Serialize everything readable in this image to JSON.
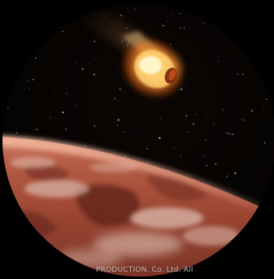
{
  "image": {
    "subject": "comet-over-red-planet",
    "colors": {
      "space": "#050302",
      "planet_surface": "#b8573f",
      "planet_dark": "#6b2a1e",
      "cloud": "#e8d2c6",
      "comet_core": "#fff3b0",
      "comet_glow": "#ff8a1e",
      "comet_tail": "#f2c06a",
      "frame": "#000000"
    }
  },
  "credit": {
    "text": "PRODUCTION. Co. Ltd. All"
  }
}
